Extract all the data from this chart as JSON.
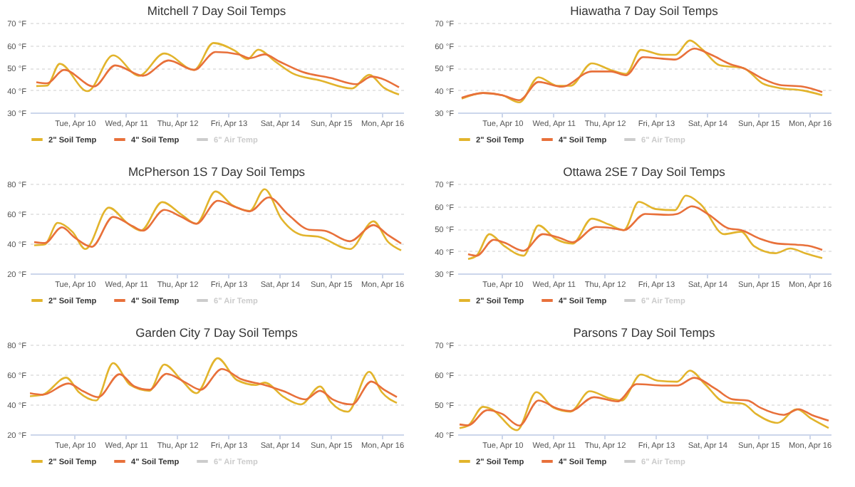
{
  "chart_data": [
    {
      "type": "line",
      "title": "Mitchell 7 Day Soil Temps",
      "xlim": [
        "--04-09T03:00",
        "--04-16T10:00"
      ],
      "xticks": [
        {
          "value": "--04-10",
          "label": "Tue, Apr 10"
        },
        {
          "value": "--04-11",
          "label": "Wed, Apr 11"
        },
        {
          "value": "--04-12",
          "label": "Thu, Apr 12"
        },
        {
          "value": "--04-13",
          "label": "Fri, Apr 13"
        },
        {
          "value": "--04-14",
          "label": "Sat, Apr 14"
        },
        {
          "value": "--04-15",
          "label": "Sun, Apr 15"
        },
        {
          "value": "--04-16",
          "label": "Mon, Apr 16"
        }
      ],
      "ylim": [
        30,
        70
      ],
      "yticks": [
        {
          "value": 30,
          "label": "30 °F"
        },
        {
          "value": 40,
          "label": "40 °F"
        },
        {
          "value": 50,
          "label": "50 °F"
        },
        {
          "value": 60,
          "label": "60 °F"
        },
        {
          "value": 70,
          "label": "70 °F"
        }
      ],
      "grid": "y",
      "legend": "bottom",
      "series": [
        {
          "name": "2\" Soil Temp",
          "color": "#e2b42c",
          "x": [
            "--04-09T06:00",
            "--04-09T11:00",
            "--04-09T17:00",
            "--04-10T06:00",
            "--04-10T18:00",
            "--04-11T06:00",
            "--04-11T18:00",
            "--04-12T08:00",
            "--04-12T17:00",
            "--04-13T03:00",
            "--04-13T09:00",
            "--04-13T14:00",
            "--04-13T22:00",
            "--04-14T06:00",
            "--04-14T19:00",
            "--04-15T10:00",
            "--04-15T18:00",
            "--04-16T01:00",
            "--04-16T08:00"
          ],
          "values": [
            41.8,
            42,
            51.7,
            39.5,
            55.5,
            46.4,
            56.3,
            49,
            61,
            57.6,
            53.8,
            58,
            52.7,
            47.5,
            44.3,
            40.7,
            46.8,
            41,
            38
          ]
        },
        {
          "name": "4\" Soil Temp",
          "color": "#e8703a",
          "x": [
            "--04-09T06:00",
            "--04-09T11:00",
            "--04-09T19:00",
            "--04-10T09:00",
            "--04-10T19:00",
            "--04-11T08:00",
            "--04-11T20:00",
            "--04-12T08:00",
            "--04-12T18:00",
            "--04-13T05:00",
            "--04-13T10:00",
            "--04-13T17:00",
            "--04-14T00:00",
            "--04-14T11:00",
            "--04-15T00:00",
            "--04-15T12:00",
            "--04-15T19:00",
            "--04-16T08:00"
          ],
          "values": [
            43.5,
            43,
            49,
            41.6,
            51,
            46.4,
            53.2,
            49,
            57,
            55.9,
            54.2,
            55.9,
            52.7,
            48,
            45.4,
            42.6,
            46,
            41.2
          ]
        },
        {
          "name": "6\" Air Temp",
          "color": "#cccccc"
        }
      ]
    },
    {
      "type": "line",
      "title": "Hiawatha 7 Day Soil Temps",
      "xlim": [
        "--04-09T03:00",
        "--04-16T10:00"
      ],
      "xticks": [
        {
          "value": "--04-10",
          "label": "Tue, Apr 10"
        },
        {
          "value": "--04-11",
          "label": "Wed, Apr 11"
        },
        {
          "value": "--04-12",
          "label": "Thu, Apr 12"
        },
        {
          "value": "--04-13",
          "label": "Fri, Apr 13"
        },
        {
          "value": "--04-14",
          "label": "Sat, Apr 14"
        },
        {
          "value": "--04-15",
          "label": "Sun, Apr 15"
        },
        {
          "value": "--04-16",
          "label": "Mon, Apr 16"
        }
      ],
      "ylim": [
        30,
        70
      ],
      "yticks": [
        {
          "value": 30,
          "label": "30 °F"
        },
        {
          "value": 40,
          "label": "40 °F"
        },
        {
          "value": 50,
          "label": "50 °F"
        },
        {
          "value": 60,
          "label": "60 °F"
        },
        {
          "value": 70,
          "label": "70 °F"
        }
      ],
      "grid": "y",
      "legend": "bottom",
      "series": [
        {
          "name": "2\" Soil Temp",
          "color": "#e2b42c",
          "x": [
            "--04-09T05:00",
            "--04-09T15:00",
            "--04-10T00:00",
            "--04-10T08:00",
            "--04-10T17:00",
            "--04-11T02:00",
            "--04-11T08:00",
            "--04-11T18:00",
            "--04-12T03:00",
            "--04-12T10:00",
            "--04-12T17:00",
            "--04-13T03:00",
            "--04-13T09:00",
            "--04-13T16:00",
            "--04-13T22:00",
            "--04-14T06:00",
            "--04-14T17:00",
            "--04-15T02:00",
            "--04-15T10:00",
            "--04-15T21:00",
            "--04-16T06:00"
          ],
          "values": [
            36.2,
            38.7,
            37.7,
            34.5,
            45.7,
            41.9,
            41.9,
            51.9,
            48.9,
            47.2,
            57.9,
            55.7,
            55.7,
            62.1,
            57.9,
            51,
            49.8,
            43,
            40.9,
            39.8,
            37.7
          ]
        },
        {
          "name": "4\" Soil Temp",
          "color": "#e8703a",
          "x": [
            "--04-09T05:00",
            "--04-09T15:00",
            "--04-10T00:00",
            "--04-10T08:00",
            "--04-10T17:00",
            "--04-11T04:00",
            "--04-11T18:00",
            "--04-12T03:00",
            "--04-12T10:00",
            "--04-12T18:00",
            "--04-13T03:00",
            "--04-13T09:00",
            "--04-13T18:00",
            "--04-14T02:00",
            "--04-14T11:00",
            "--04-14T17:00",
            "--04-15T02:00",
            "--04-15T10:00",
            "--04-15T21:00",
            "--04-16T06:00"
          ],
          "values": [
            36.6,
            38.7,
            37.7,
            35.5,
            43.6,
            41.5,
            48.3,
            48.3,
            46.6,
            54.7,
            54,
            53.6,
            58.5,
            55.7,
            51.5,
            49.8,
            45.1,
            42.3,
            41.5,
            39.1
          ]
        },
        {
          "name": "6\" Air Temp",
          "color": "#cccccc"
        }
      ]
    },
    {
      "type": "line",
      "title": "McPherson 1S 7 Day Soil Temps",
      "xlim": [
        "--04-09T03:00",
        "--04-16T10:00"
      ],
      "xticks": [
        {
          "value": "--04-10",
          "label": "Tue, Apr 10"
        },
        {
          "value": "--04-11",
          "label": "Wed, Apr 11"
        },
        {
          "value": "--04-12",
          "label": "Thu, Apr 12"
        },
        {
          "value": "--04-13",
          "label": "Fri, Apr 13"
        },
        {
          "value": "--04-14",
          "label": "Sat, Apr 14"
        },
        {
          "value": "--04-15",
          "label": "Sun, Apr 15"
        },
        {
          "value": "--04-16",
          "label": "Mon, Apr 16"
        }
      ],
      "ylim": [
        20,
        80
      ],
      "yticks": [
        {
          "value": 20,
          "label": "20 °F"
        },
        {
          "value": 40,
          "label": "40 °F"
        },
        {
          "value": 60,
          "label": "60 °F"
        },
        {
          "value": 80,
          "label": "80 °F"
        }
      ],
      "grid": "y",
      "legend": "bottom",
      "series": [
        {
          "name": "2\" Soil Temp",
          "color": "#e2b42c",
          "x": [
            "--04-09T05:00",
            "--04-09T10:00",
            "--04-09T16:00",
            "--04-09T23:00",
            "--04-10T05:00",
            "--04-10T16:00",
            "--04-11T01:00",
            "--04-11T07:00",
            "--04-11T17:00",
            "--04-12T02:00",
            "--04-12T09:00",
            "--04-12T18:00",
            "--04-13T02:00",
            "--04-13T10:00",
            "--04-13T17:00",
            "--04-14T01:00",
            "--04-14T11:00",
            "--04-14T18:00",
            "--04-15T09:00",
            "--04-15T20:00",
            "--04-16T03:00",
            "--04-16T09:00"
          ],
          "values": [
            38.8,
            39.4,
            53.8,
            47.7,
            36.3,
            64,
            53.2,
            48.6,
            67.7,
            59.4,
            53.2,
            74.8,
            65.5,
            61.8,
            76.3,
            56.3,
            45.5,
            44.6,
            36.3,
            54.8,
            40.9,
            35.4
          ]
        },
        {
          "name": "4\" Soil Temp",
          "color": "#e8703a",
          "x": [
            "--04-09T05:00",
            "--04-09T10:00",
            "--04-09T18:00",
            "--04-10T00:00",
            "--04-10T08:00",
            "--04-10T18:00",
            "--04-11T03:00",
            "--04-11T08:00",
            "--04-11T18:00",
            "--04-12T02:00",
            "--04-12T09:00",
            "--04-12T19:00",
            "--04-13T04:00",
            "--04-13T10:00",
            "--04-13T19:00",
            "--04-14T04:00",
            "--04-14T14:00",
            "--04-14T21:00",
            "--04-15T09:00",
            "--04-15T20:00",
            "--04-16T03:00",
            "--04-16T09:00"
          ],
          "values": [
            40.9,
            40.3,
            50.8,
            44,
            37.8,
            57.8,
            51.7,
            48.6,
            62.5,
            57.8,
            53.2,
            68.6,
            64,
            61.5,
            70.8,
            59.4,
            49.2,
            48.6,
            41.5,
            52.3,
            45.5,
            40
          ]
        },
        {
          "name": "6\" Air Temp",
          "color": "#cccccc"
        }
      ]
    },
    {
      "type": "line",
      "title": "Ottawa 2SE 7 Day Soil Temps",
      "xlim": [
        "--04-09T03:00",
        "--04-16T10:00"
      ],
      "xticks": [
        {
          "value": "--04-10",
          "label": "Tue, Apr 10"
        },
        {
          "value": "--04-11",
          "label": "Wed, Apr 11"
        },
        {
          "value": "--04-12",
          "label": "Thu, Apr 12"
        },
        {
          "value": "--04-13",
          "label": "Fri, Apr 13"
        },
        {
          "value": "--04-14",
          "label": "Sat, Apr 14"
        },
        {
          "value": "--04-15",
          "label": "Sun, Apr 15"
        },
        {
          "value": "--04-16",
          "label": "Mon, Apr 16"
        }
      ],
      "ylim": [
        30,
        70
      ],
      "yticks": [
        {
          "value": 30,
          "label": "30 °F"
        },
        {
          "value": 40,
          "label": "40 °F"
        },
        {
          "value": 50,
          "label": "50 °F"
        },
        {
          "value": 60,
          "label": "60 °F"
        },
        {
          "value": 70,
          "label": "70 °F"
        }
      ],
      "grid": "y",
      "legend": "bottom",
      "series": [
        {
          "name": "2\" Soil Temp",
          "color": "#e2b42c",
          "x": [
            "--04-09T08:00",
            "--04-09T12:00",
            "--04-09T18:00",
            "--04-10T01:00",
            "--04-10T10:00",
            "--04-10T17:00",
            "--04-11T01:00",
            "--04-11T09:00",
            "--04-11T18:00",
            "--04-12T02:00",
            "--04-12T09:00",
            "--04-12T16:00",
            "--04-13T00:00",
            "--04-13T09:00",
            "--04-13T14:00",
            "--04-13T21:00",
            "--04-14T08:00",
            "--04-14T16:00",
            "--04-14T22:00",
            "--04-15T08:00",
            "--04-15T15:00",
            "--04-15T22:00",
            "--04-16T06:00"
          ],
          "values": [
            36.4,
            37.9,
            47.5,
            42.2,
            37.9,
            51.4,
            45.4,
            43.3,
            54.4,
            51.8,
            49.3,
            61.9,
            58.7,
            58.2,
            64.7,
            60.8,
            47.5,
            48.6,
            42.2,
            39,
            41.1,
            39,
            36.8
          ]
        },
        {
          "name": "4\" Soil Temp",
          "color": "#e8703a",
          "x": [
            "--04-09T08:00",
            "--04-09T12:00",
            "--04-09T20:00",
            "--04-10T01:00",
            "--04-10T10:00",
            "--04-10T19:00",
            "--04-11T03:00",
            "--04-11T09:00",
            "--04-11T20:00",
            "--04-12T04:00",
            "--04-12T09:00",
            "--04-12T19:00",
            "--04-13T06:00",
            "--04-13T10:00",
            "--04-13T17:00",
            "--04-14T01:00",
            "--04-14T10:00",
            "--04-14T16:00",
            "--04-15T01:00",
            "--04-15T09:00",
            "--04-15T18:00",
            "--04-16T00:00",
            "--04-16T06:00"
          ],
          "values": [
            38.6,
            37.9,
            45,
            43.7,
            40.1,
            47.5,
            45.8,
            43.9,
            50.7,
            50.1,
            49.3,
            56.5,
            56.1,
            56.5,
            59.9,
            56.1,
            50.1,
            49.3,
            45.4,
            43.3,
            42.8,
            42.2,
            40.5
          ]
        },
        {
          "name": "6\" Air Temp",
          "color": "#cccccc"
        }
      ]
    },
    {
      "type": "line",
      "title": "Garden City 7 Day Soil Temps",
      "xlim": [
        "--04-09T03:00",
        "--04-16T10:00"
      ],
      "xticks": [
        {
          "value": "--04-10",
          "label": "Tue, Apr 10"
        },
        {
          "value": "--04-11",
          "label": "Wed, Apr 11"
        },
        {
          "value": "--04-12",
          "label": "Thu, Apr 12"
        },
        {
          "value": "--04-13",
          "label": "Fri, Apr 13"
        },
        {
          "value": "--04-14",
          "label": "Sat, Apr 14"
        },
        {
          "value": "--04-15",
          "label": "Sun, Apr 15"
        },
        {
          "value": "--04-16",
          "label": "Mon, Apr 16"
        }
      ],
      "ylim": [
        20,
        80
      ],
      "yticks": [
        {
          "value": 20,
          "label": "20 °F"
        },
        {
          "value": 40,
          "label": "40 °F"
        },
        {
          "value": 60,
          "label": "60 °F"
        },
        {
          "value": 80,
          "label": "80 °F"
        }
      ],
      "grid": "y",
      "legend": "bottom",
      "series": [
        {
          "name": "2\" Soil Temp",
          "color": "#e2b42c",
          "x": [
            "--04-09T03:00",
            "--04-09T09:00",
            "--04-09T20:00",
            "--04-10T02:00",
            "--04-10T10:00",
            "--04-10T18:00",
            "--04-11T02:00",
            "--04-11T11:00",
            "--04-11T18:00",
            "--04-12T02:00",
            "--04-12T09:00",
            "--04-12T19:00",
            "--04-13T04:00",
            "--04-13T13:00",
            "--04-13T17:00",
            "--04-14T02:00",
            "--04-14T10:00",
            "--04-14T19:00",
            "--04-15T00:00",
            "--04-15T08:00",
            "--04-15T18:00",
            "--04-16T00:00",
            "--04-16T07:00"
          ],
          "values": [
            45.5,
            46.5,
            57.9,
            48.1,
            42.6,
            67.6,
            53,
            49.1,
            66.7,
            56.3,
            47.5,
            70.9,
            56.3,
            53,
            54.6,
            44.9,
            40,
            52,
            41.6,
            35.1,
            61.8,
            48.1,
            41
          ]
        },
        {
          "name": "4\" Soil Temp",
          "color": "#e8703a",
          "x": [
            "--04-09T03:00",
            "--04-09T09:00",
            "--04-09T21:00",
            "--04-10T04:00",
            "--04-10T11:00",
            "--04-10T21:00",
            "--04-11T04:00",
            "--04-11T11:00",
            "--04-11T19:00",
            "--04-12T04:00",
            "--04-12T11:00",
            "--04-12T21:00",
            "--04-13T06:00",
            "--04-13T17:00",
            "--04-14T02:00",
            "--04-14T12:00",
            "--04-14T19:00",
            "--04-15T01:00",
            "--04-15T10:00",
            "--04-15T19:00",
            "--04-16T01:00",
            "--04-16T07:00"
          ],
          "values": [
            47.5,
            46.5,
            54,
            48.8,
            44.9,
            60.2,
            52,
            49.8,
            60.5,
            54.6,
            49.8,
            63.7,
            56.9,
            53,
            48.8,
            43.3,
            49.1,
            43.3,
            40,
            55.3,
            49.8,
            44.9
          ]
        },
        {
          "name": "6\" Air Temp",
          "color": "#cccccc"
        }
      ]
    },
    {
      "type": "line",
      "title": "Parsons 7 Day Soil Temps",
      "xlim": [
        "--04-09T03:00",
        "--04-16T10:00"
      ],
      "xticks": [
        {
          "value": "--04-10",
          "label": "Tue, Apr 10"
        },
        {
          "value": "--04-11",
          "label": "Wed, Apr 11"
        },
        {
          "value": "--04-12",
          "label": "Thu, Apr 12"
        },
        {
          "value": "--04-13",
          "label": "Fri, Apr 13"
        },
        {
          "value": "--04-14",
          "label": "Sat, Apr 14"
        },
        {
          "value": "--04-15",
          "label": "Sun, Apr 15"
        },
        {
          "value": "--04-16",
          "label": "Mon, Apr 16"
        }
      ],
      "ylim": [
        40,
        70
      ],
      "yticks": [
        {
          "value": 40,
          "label": "40 °F"
        },
        {
          "value": 50,
          "label": "50 °F"
        },
        {
          "value": 60,
          "label": "60 °F"
        },
        {
          "value": 70,
          "label": "70 °F"
        }
      ],
      "grid": "y",
      "legend": "bottom",
      "series": [
        {
          "name": "2\" Soil Temp",
          "color": "#e2b42c",
          "x": [
            "--04-09T04:00",
            "--04-09T08:00",
            "--04-09T15:00",
            "--04-09T19:00",
            "--04-10T07:00",
            "--04-10T16:00",
            "--04-11T00:00",
            "--04-11T08:00",
            "--04-11T17:00",
            "--04-12T02:00",
            "--04-12T08:00",
            "--04-12T17:00",
            "--04-13T01:00",
            "--04-13T10:00",
            "--04-13T16:00",
            "--04-13T23:00",
            "--04-14T08:00",
            "--04-14T17:00",
            "--04-14T23:00",
            "--04-15T09:00",
            "--04-15T18:00",
            "--04-16T01:00",
            "--04-16T09:00"
          ],
          "values": [
            42.1,
            42.9,
            49.2,
            48.4,
            41.4,
            54.1,
            48.9,
            47.6,
            54.4,
            52.1,
            51.3,
            60,
            57.9,
            57.6,
            61.3,
            56.8,
            50.8,
            50.2,
            46.8,
            43.8,
            48.4,
            45.2,
            42.1
          ]
        },
        {
          "name": "4\" Soil Temp",
          "color": "#e8703a",
          "x": [
            "--04-09T04:00",
            "--04-09T08:00",
            "--04-09T17:00",
            "--04-10T00:00",
            "--04-10T08:00",
            "--04-10T17:00",
            "--04-11T02:00",
            "--04-11T08:00",
            "--04-11T19:00",
            "--04-12T06:00",
            "--04-12T15:00",
            "--04-13T04:00",
            "--04-13T10:00",
            "--04-13T18:00",
            "--04-14T04:00",
            "--04-14T12:00",
            "--04-14T19:00",
            "--04-15T01:00",
            "--04-15T12:00",
            "--04-15T19:00",
            "--04-16T01:00",
            "--04-16T09:00"
          ],
          "values": [
            43.3,
            43,
            48.1,
            46.8,
            42.9,
            51.3,
            48.6,
            47.8,
            52.4,
            51,
            56.8,
            56.3,
            56.3,
            58.9,
            55.2,
            51.7,
            51.3,
            48.9,
            46.5,
            48.4,
            46.5,
            44.6
          ]
        },
        {
          "name": "6\" Air Temp",
          "color": "#cccccc"
        }
      ]
    }
  ]
}
